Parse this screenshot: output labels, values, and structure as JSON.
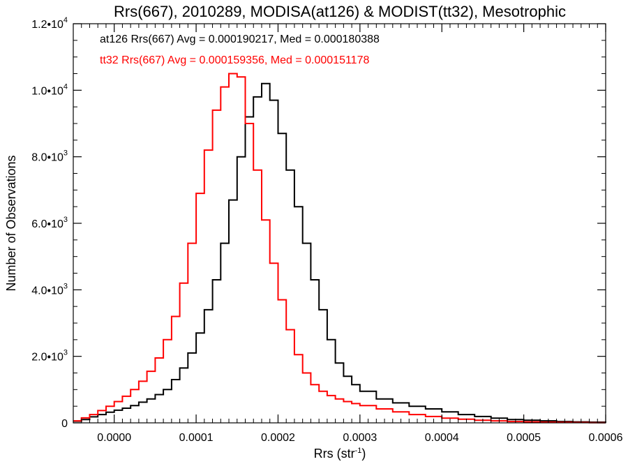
{
  "chart_data": {
    "type": "line",
    "style": "step-histogram",
    "title": "Rrs(667), 2010289, MODISA(at126) & MODIST(tt32), Mesotrophic",
    "xlabel_base": "Rrs (str",
    "xlabel_sup": "-1",
    "xlabel_close": ")",
    "ylabel": "Number of Observations",
    "xlim": [
      -5e-05,
      0.0006
    ],
    "ylim": [
      0,
      12000
    ],
    "xticks": [
      {
        "value": 0.0,
        "label": "0.0000"
      },
      {
        "value": 0.0001,
        "label": "0.0001"
      },
      {
        "value": 0.0002,
        "label": "0.0002"
      },
      {
        "value": 0.0003,
        "label": "0.0003"
      },
      {
        "value": 0.0004,
        "label": "0.0004"
      },
      {
        "value": 0.0005,
        "label": "0.0005"
      },
      {
        "value": 0.0006,
        "label": "0.0006"
      }
    ],
    "yticks": [
      {
        "value": 0,
        "label": "0",
        "sup": ""
      },
      {
        "value": 2000,
        "label": "2.0•10",
        "sup": "3"
      },
      {
        "value": 4000,
        "label": "4.0•10",
        "sup": "3"
      },
      {
        "value": 6000,
        "label": "6.0•10",
        "sup": "3"
      },
      {
        "value": 8000,
        "label": "8.0•10",
        "sup": "3"
      },
      {
        "value": 10000,
        "label": "1.0•10",
        "sup": "4"
      },
      {
        "value": 12000,
        "label": "1.2•10",
        "sup": "4"
      }
    ],
    "annotations": [
      {
        "text": "at126 Rrs(667) Avg = 0.000190217, Med = 0.000180388",
        "color": "#000000"
      },
      {
        "text": "tt32 Rrs(667) Avg = 0.000159356, Med = 0.000151178",
        "color": "#ff0000"
      }
    ],
    "series": [
      {
        "color": "#000000",
        "x": [
          -5e-05,
          -4e-05,
          -3e-05,
          -2e-05,
          -1e-05,
          0.0,
          1e-05,
          2e-05,
          3e-05,
          4e-05,
          5e-05,
          6e-05,
          7e-05,
          8e-05,
          9e-05,
          0.0001,
          0.00011,
          0.00012,
          0.00013,
          0.00014,
          0.00015,
          0.00016,
          0.00017,
          0.00018,
          0.00019,
          0.0002,
          0.00021,
          0.00022,
          0.00023,
          0.00024,
          0.00025,
          0.00026,
          0.00027,
          0.00028,
          0.00029,
          0.0003,
          0.00032,
          0.00034,
          0.00036,
          0.00038,
          0.0004,
          0.00042,
          0.00044,
          0.00046,
          0.00048,
          0.0005,
          0.00052,
          0.00054,
          0.00056,
          0.00058,
          0.0006
        ],
        "y": [
          50,
          100,
          180,
          250,
          320,
          380,
          440,
          520,
          620,
          720,
          850,
          1000,
          1300,
          1650,
          2100,
          2700,
          3400,
          4300,
          5400,
          6700,
          8000,
          9200,
          9800,
          10200,
          9700,
          8700,
          7600,
          6500,
          5400,
          4300,
          3400,
          2500,
          1800,
          1400,
          1150,
          950,
          720,
          600,
          500,
          420,
          330,
          250,
          190,
          140,
          100,
          80,
          60,
          40,
          30,
          20,
          10
        ]
      },
      {
        "color": "#ff0000",
        "x": [
          -5e-05,
          -4e-05,
          -3e-05,
          -2e-05,
          -1e-05,
          0.0,
          1e-05,
          2e-05,
          3e-05,
          4e-05,
          5e-05,
          6e-05,
          7e-05,
          8e-05,
          9e-05,
          0.0001,
          0.00011,
          0.00012,
          0.00013,
          0.00014,
          0.00015,
          0.00016,
          0.00017,
          0.00018,
          0.00019,
          0.0002,
          0.00021,
          0.00022,
          0.00023,
          0.00024,
          0.00025,
          0.00026,
          0.00027,
          0.00028,
          0.00029,
          0.0003,
          0.00032,
          0.00034,
          0.00036,
          0.00038,
          0.0004,
          0.00042,
          0.00044,
          0.00046,
          0.00048,
          0.0005,
          0.00052,
          0.00054,
          0.00056,
          0.00058,
          0.0006
        ],
        "y": [
          60,
          150,
          250,
          370,
          500,
          640,
          800,
          1000,
          1250,
          1550,
          1950,
          2500,
          3200,
          4200,
          5400,
          6900,
          8200,
          9400,
          10100,
          10500,
          10400,
          9000,
          7600,
          6100,
          4800,
          3700,
          2800,
          2050,
          1500,
          1150,
          950,
          820,
          720,
          640,
          580,
          520,
          420,
          330,
          250,
          190,
          140,
          110,
          80,
          60,
          40,
          30,
          20,
          15,
          10,
          5,
          5
        ]
      }
    ]
  }
}
